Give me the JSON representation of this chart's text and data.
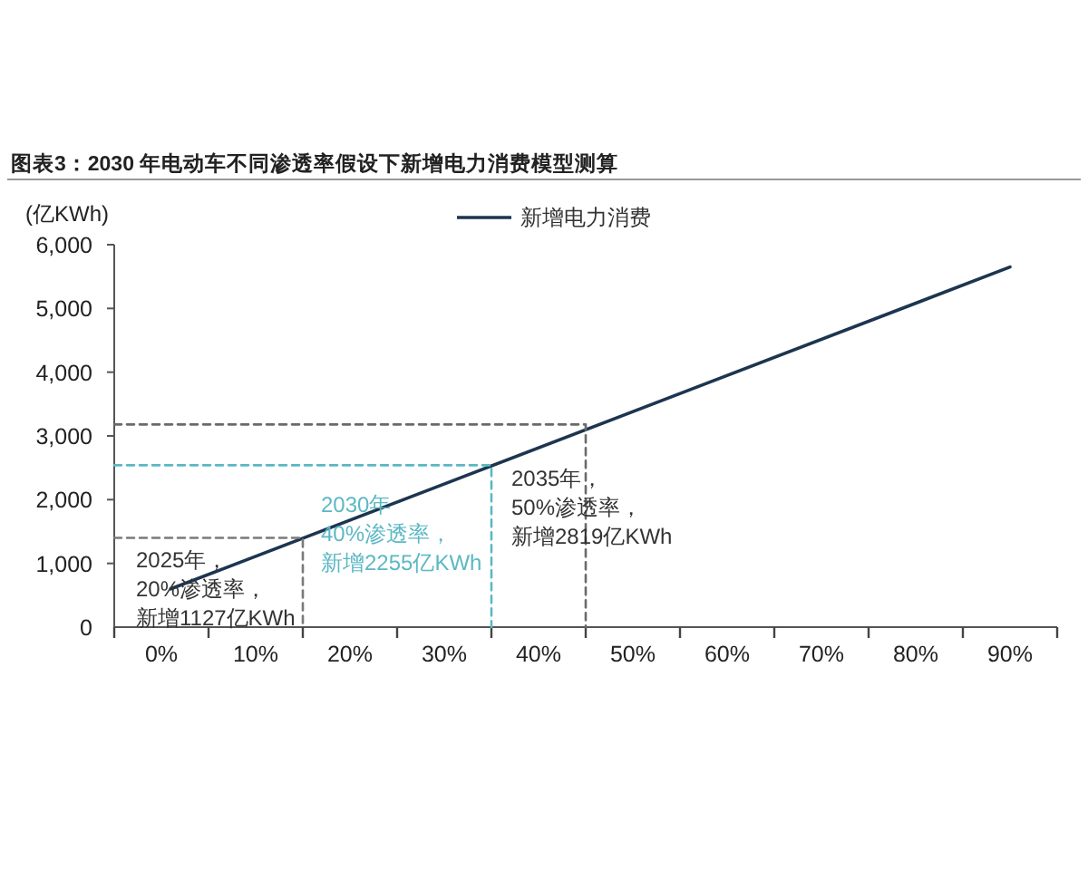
{
  "chart_data": {
    "type": "line",
    "title": "图表3：2030 年电动车不同渗透率假设下新增电力消费模型测算",
    "ylabel": "(亿KWh)",
    "xlim": [
      -5,
      95
    ],
    "xticks": [
      {
        "value": 0,
        "label": "0%"
      },
      {
        "value": 10,
        "label": "10%"
      },
      {
        "value": 20,
        "label": "20%"
      },
      {
        "value": 30,
        "label": "30%"
      },
      {
        "value": 40,
        "label": "40%"
      },
      {
        "value": 50,
        "label": "50%"
      },
      {
        "value": 60,
        "label": "60%"
      },
      {
        "value": 70,
        "label": "70%"
      },
      {
        "value": 80,
        "label": "80%"
      },
      {
        "value": 90,
        "label": "90%"
      }
    ],
    "ylim": [
      0,
      6000
    ],
    "yticks": [
      {
        "value": 0,
        "label": "0"
      },
      {
        "value": 1000,
        "label": "1,000"
      },
      {
        "value": 2000,
        "label": "2,000"
      },
      {
        "value": 3000,
        "label": "3,000"
      },
      {
        "value": 4000,
        "label": "4,000"
      },
      {
        "value": 5000,
        "label": "5,000"
      },
      {
        "value": 6000,
        "label": "6,000"
      }
    ],
    "grid": false,
    "legend": "top",
    "marker": "none",
    "series": [
      {
        "name": "新增电力消费",
        "color": "#1c3550",
        "x": [
          1,
          90
        ],
        "values": [
          600,
          5650
        ],
        "line_style": "solid"
      },
      {
        "color": "#7a7a7a",
        "x": [
          -5,
          15,
          15
        ],
        "values": [
          1400,
          1400,
          0
        ],
        "line_style": "dashed"
      },
      {
        "color": "#5bb8c4",
        "x": [
          -5,
          35,
          35
        ],
        "values": [
          2540,
          2540,
          0
        ],
        "line_style": "dashed"
      },
      {
        "color": "#6a6a6a",
        "x": [
          -5,
          45,
          45
        ],
        "values": [
          3180,
          3180,
          0
        ],
        "line_style": "dashed"
      }
    ],
    "annotations": [
      {
        "text": "2025年，20%渗透率，新增1127亿KWh",
        "x": 15,
        "y": 1400
      },
      {
        "text": "2030年40%渗透率，新增2255亿KWh",
        "x": 35,
        "y": 2540
      },
      {
        "text": "2035年，50%渗透率，新增2819亿KWh",
        "x": 45,
        "y": 3180
      }
    ]
  }
}
